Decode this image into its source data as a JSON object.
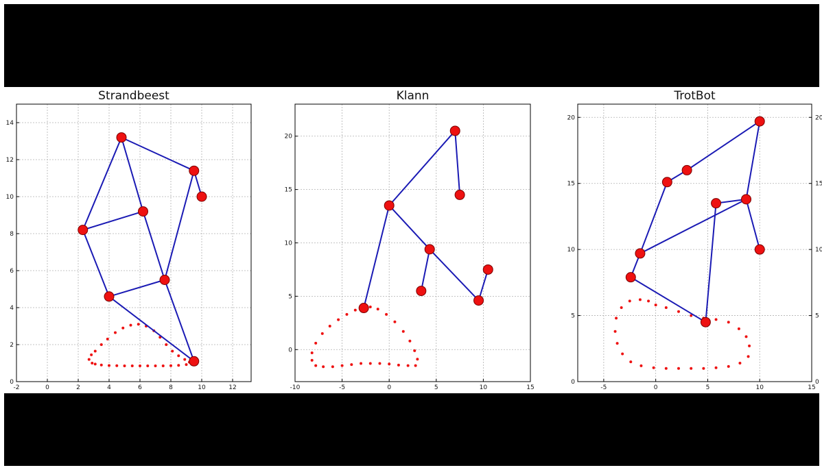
{
  "colors": {
    "link": "#1a1ab4",
    "joint": "#ee1111",
    "trace": "#ee1111",
    "background": "#ffffff",
    "band": "#000000"
  },
  "chart_data": [
    {
      "type": "scatter",
      "title": "Strandbeest",
      "xlim": [
        -2,
        13.2
      ],
      "ylim": [
        0,
        15
      ],
      "xticks": [
        -2,
        0,
        2,
        4,
        6,
        8,
        10,
        12
      ],
      "yticks": [
        0,
        2,
        4,
        6,
        8,
        10,
        12,
        14
      ],
      "grid": true,
      "joints": [
        [
          4.8,
          13.2
        ],
        [
          9.5,
          11.4
        ],
        [
          10.0,
          10.0
        ],
        [
          2.3,
          8.2
        ],
        [
          6.2,
          9.2
        ],
        [
          7.6,
          5.5
        ],
        [
          4.0,
          4.6
        ],
        [
          9.5,
          1.1
        ]
      ],
      "links": [
        [
          0,
          1
        ],
        [
          1,
          2
        ],
        [
          0,
          3
        ],
        [
          0,
          4
        ],
        [
          3,
          4
        ],
        [
          4,
          5
        ],
        [
          1,
          5
        ],
        [
          3,
          6
        ],
        [
          6,
          5
        ],
        [
          6,
          7
        ],
        [
          5,
          7
        ]
      ],
      "trace": [
        [
          2.9,
          1.0
        ],
        [
          2.7,
          1.2
        ],
        [
          2.85,
          1.45
        ],
        [
          3.1,
          1.65
        ],
        [
          3.5,
          2.0
        ],
        [
          3.9,
          2.3
        ],
        [
          4.4,
          2.65
        ],
        [
          4.9,
          2.9
        ],
        [
          5.4,
          3.05
        ],
        [
          5.9,
          3.1
        ],
        [
          6.4,
          3.0
        ],
        [
          6.9,
          2.75
        ],
        [
          7.3,
          2.4
        ],
        [
          7.7,
          2.0
        ],
        [
          8.1,
          1.65
        ],
        [
          8.5,
          1.4
        ],
        [
          8.9,
          1.2
        ],
        [
          9.2,
          1.05
        ],
        [
          9.0,
          0.92
        ],
        [
          8.5,
          0.88
        ],
        [
          8.0,
          0.86
        ],
        [
          7.5,
          0.85
        ],
        [
          7.0,
          0.85
        ],
        [
          6.5,
          0.85
        ],
        [
          6.0,
          0.85
        ],
        [
          5.5,
          0.85
        ],
        [
          5.0,
          0.85
        ],
        [
          4.5,
          0.86
        ],
        [
          4.0,
          0.87
        ],
        [
          3.5,
          0.9
        ],
        [
          3.1,
          0.95
        ]
      ]
    },
    {
      "type": "scatter",
      "title": "Klann",
      "xlim": [
        -10,
        15
      ],
      "ylim": [
        -3,
        23
      ],
      "xticks": [
        -10,
        -5,
        0,
        5,
        10,
        15
      ],
      "yticks": [
        0,
        5,
        10,
        15,
        20
      ],
      "grid": true,
      "joints": [
        [
          7.0,
          20.5
        ],
        [
          7.5,
          14.5
        ],
        [
          0.0,
          13.5
        ],
        [
          4.3,
          9.4
        ],
        [
          10.5,
          7.5
        ],
        [
          3.4,
          5.5
        ],
        [
          9.5,
          4.6
        ],
        [
          -2.7,
          3.9
        ]
      ],
      "links": [
        [
          0,
          1
        ],
        [
          0,
          2
        ],
        [
          2,
          3
        ],
        [
          3,
          6
        ],
        [
          6,
          4
        ],
        [
          3,
          5
        ],
        [
          2,
          7
        ]
      ],
      "trace": [
        [
          -2.7,
          3.9
        ],
        [
          -3.6,
          3.7
        ],
        [
          -4.5,
          3.3
        ],
        [
          -5.4,
          2.8
        ],
        [
          -6.3,
          2.2
        ],
        [
          -7.1,
          1.5
        ],
        [
          -7.8,
          0.6
        ],
        [
          -8.2,
          -0.3
        ],
        [
          -8.2,
          -1.0
        ],
        [
          -7.8,
          -1.5
        ],
        [
          -7.0,
          -1.6
        ],
        [
          -6.0,
          -1.6
        ],
        [
          -5.0,
          -1.5
        ],
        [
          -4.0,
          -1.4
        ],
        [
          -3.0,
          -1.3
        ],
        [
          -2.0,
          -1.3
        ],
        [
          -1.0,
          -1.3
        ],
        [
          0.0,
          -1.35
        ],
        [
          1.0,
          -1.45
        ],
        [
          2.0,
          -1.5
        ],
        [
          2.8,
          -1.5
        ],
        [
          3.0,
          -0.9
        ],
        [
          2.7,
          -0.1
        ],
        [
          2.2,
          0.8
        ],
        [
          1.5,
          1.7
        ],
        [
          0.6,
          2.6
        ],
        [
          -0.3,
          3.3
        ],
        [
          -1.2,
          3.8
        ],
        [
          -2.0,
          4.0
        ]
      ]
    },
    {
      "type": "scatter",
      "title": "TrotBot",
      "xlim": [
        -7.5,
        15
      ],
      "ylim": [
        0,
        21
      ],
      "xticks": [
        -5,
        0,
        5,
        10,
        15
      ],
      "yticks": [
        0,
        5,
        10,
        15,
        20
      ],
      "right_yticks": [
        0,
        5,
        10,
        15,
        20
      ],
      "grid": true,
      "joints": [
        [
          10.0,
          19.7
        ],
        [
          3.0,
          16.0
        ],
        [
          1.1,
          15.1
        ],
        [
          5.8,
          13.5
        ],
        [
          8.7,
          13.8
        ],
        [
          10.0,
          10.0
        ],
        [
          -1.5,
          9.7
        ],
        [
          -2.4,
          7.9
        ],
        [
          4.8,
          4.5
        ]
      ],
      "links": [
        [
          0,
          1
        ],
        [
          1,
          2
        ],
        [
          2,
          6
        ],
        [
          0,
          4
        ],
        [
          4,
          6
        ],
        [
          4,
          3
        ],
        [
          4,
          5
        ],
        [
          3,
          8
        ],
        [
          8,
          7
        ],
        [
          7,
          6
        ]
      ],
      "trace": [
        [
          -1.5,
          6.2
        ],
        [
          -2.5,
          6.1
        ],
        [
          -3.3,
          5.6
        ],
        [
          -3.8,
          4.8
        ],
        [
          -3.9,
          3.8
        ],
        [
          -3.7,
          2.9
        ],
        [
          -3.2,
          2.1
        ],
        [
          -2.4,
          1.5
        ],
        [
          -1.4,
          1.2
        ],
        [
          -0.2,
          1.05
        ],
        [
          1.0,
          1.0
        ],
        [
          2.2,
          1.0
        ],
        [
          3.4,
          1.0
        ],
        [
          4.6,
          1.0
        ],
        [
          5.8,
          1.05
        ],
        [
          7.0,
          1.15
        ],
        [
          8.1,
          1.4
        ],
        [
          8.9,
          1.9
        ],
        [
          9.0,
          2.7
        ],
        [
          8.7,
          3.4
        ],
        [
          8.0,
          4.0
        ],
        [
          7.0,
          4.5
        ],
        [
          5.8,
          4.7
        ],
        [
          4.6,
          4.8
        ],
        [
          3.4,
          5.0
        ],
        [
          2.2,
          5.3
        ],
        [
          1.0,
          5.6
        ],
        [
          0.0,
          5.8
        ],
        [
          -0.7,
          6.1
        ]
      ]
    }
  ]
}
